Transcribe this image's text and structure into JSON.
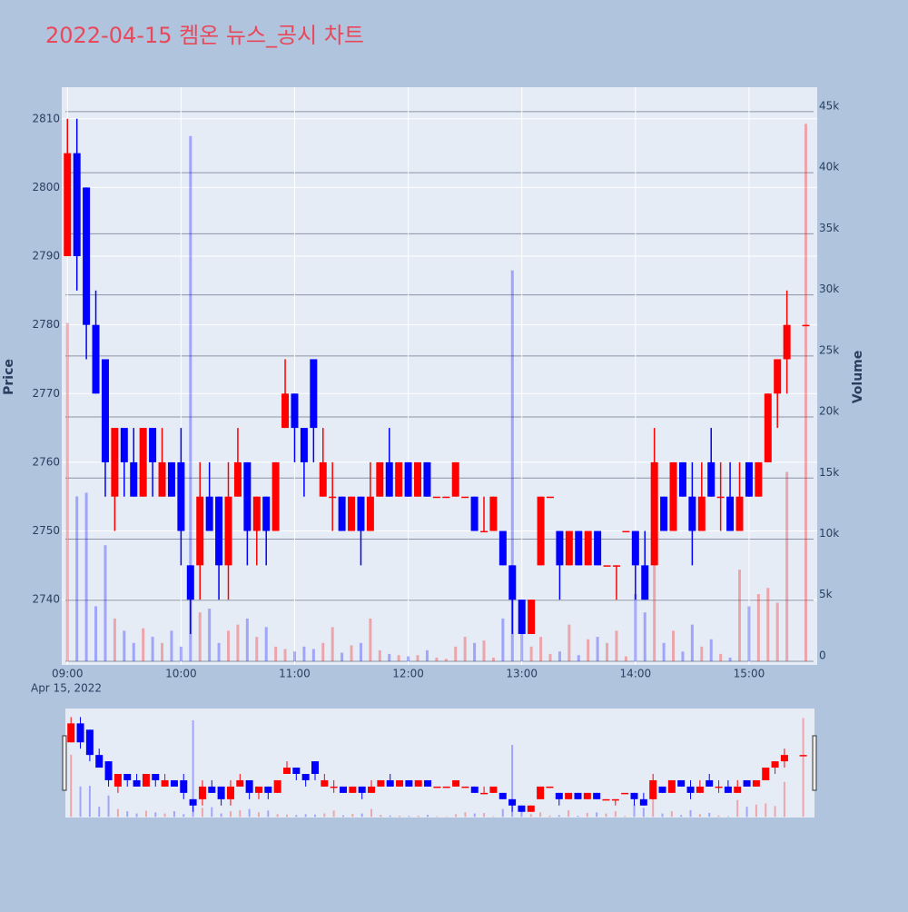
{
  "chart_data": {
    "type": "candlestick",
    "title": "2022-04-15 켐온 뉴스_공시 차트",
    "y_label": "Price",
    "y2_label": "Volume",
    "x_date_label": "Apr 15, 2022",
    "increasing_color": "#ff0000",
    "decreasing_color": "#0000ff",
    "x": [
      "2022-04-15 09:00",
      "2022-04-15 09:05",
      "2022-04-15 09:10",
      "2022-04-15 09:15",
      "2022-04-15 09:20",
      "2022-04-15 09:25",
      "2022-04-15 09:30",
      "2022-04-15 09:35",
      "2022-04-15 09:40",
      "2022-04-15 09:45",
      "2022-04-15 09:50",
      "2022-04-15 09:55",
      "2022-04-15 10:00",
      "2022-04-15 10:05",
      "2022-04-15 10:10",
      "2022-04-15 10:15",
      "2022-04-15 10:20",
      "2022-04-15 10:25",
      "2022-04-15 10:30",
      "2022-04-15 10:35",
      "2022-04-15 10:40",
      "2022-04-15 10:45",
      "2022-04-15 10:50",
      "2022-04-15 10:55",
      "2022-04-15 11:00",
      "2022-04-15 11:05",
      "2022-04-15 11:10",
      "2022-04-15 11:15",
      "2022-04-15 11:20",
      "2022-04-15 11:25",
      "2022-04-15 11:30",
      "2022-04-15 11:35",
      "2022-04-15 11:40",
      "2022-04-15 11:45",
      "2022-04-15 11:50",
      "2022-04-15 11:55",
      "2022-04-15 12:00",
      "2022-04-15 12:05",
      "2022-04-15 12:10",
      "2022-04-15 12:15",
      "2022-04-15 12:20",
      "2022-04-15 12:25",
      "2022-04-15 12:30",
      "2022-04-15 12:35",
      "2022-04-15 12:40",
      "2022-04-15 12:45",
      "2022-04-15 12:50",
      "2022-04-15 12:55",
      "2022-04-15 13:00",
      "2022-04-15 13:05",
      "2022-04-15 13:10",
      "2022-04-15 13:15",
      "2022-04-15 13:20",
      "2022-04-15 13:25",
      "2022-04-15 13:30",
      "2022-04-15 13:35",
      "2022-04-15 13:40",
      "2022-04-15 13:45",
      "2022-04-15 13:50",
      "2022-04-15 13:55",
      "2022-04-15 14:00",
      "2022-04-15 14:05",
      "2022-04-15 14:10",
      "2022-04-15 14:15",
      "2022-04-15 14:20",
      "2022-04-15 14:25",
      "2022-04-15 14:30",
      "2022-04-15 14:35",
      "2022-04-15 14:40",
      "2022-04-15 14:45",
      "2022-04-15 14:50",
      "2022-04-15 14:55",
      "2022-04-15 15:00",
      "2022-04-15 15:05",
      "2022-04-15 15:10",
      "2022-04-15 15:15",
      "2022-04-15 15:20",
      "2022-04-15 15:30"
    ],
    "open": [
      2790,
      2805,
      2800,
      2780,
      2775,
      2755,
      2765,
      2760,
      2755,
      2765,
      2755,
      2760,
      2760,
      2745,
      2745,
      2755,
      2755,
      2745,
      2755,
      2760,
      2750,
      2755,
      2750,
      2765,
      2770,
      2765,
      2775,
      2755,
      2755,
      2755,
      2750,
      2755,
      2750,
      2755,
      2760,
      2755,
      2760,
      2755,
      2760,
      2755,
      2755,
      2755,
      2755,
      2755,
      2750,
      2750,
      2750,
      2745,
      2740,
      2735,
      2745,
      2755,
      2750,
      2745,
      2750,
      2745,
      2750,
      2745,
      2745,
      2750,
      2750,
      2745,
      2745,
      2755,
      2750,
      2760,
      2755,
      2750,
      2760,
      2755,
      2755,
      2750,
      2760,
      2755,
      2760,
      2770,
      2775,
      2780
    ],
    "high": [
      2810,
      2810,
      2800,
      2785,
      2775,
      2765,
      2765,
      2765,
      2765,
      2765,
      2765,
      2760,
      2765,
      2745,
      2760,
      2760,
      2755,
      2760,
      2765,
      2760,
      2755,
      2755,
      2760,
      2775,
      2770,
      2765,
      2775,
      2765,
      2760,
      2755,
      2755,
      2755,
      2760,
      2760,
      2765,
      2760,
      2760,
      2760,
      2760,
      2755,
      2755,
      2760,
      2755,
      2755,
      2755,
      2755,
      2750,
      2745,
      2740,
      2740,
      2755,
      2755,
      2750,
      2750,
      2750,
      2750,
      2750,
      2745,
      2745,
      2750,
      2750,
      2750,
      2765,
      2755,
      2760,
      2760,
      2760,
      2760,
      2765,
      2760,
      2760,
      2760,
      2760,
      2760,
      2770,
      2775,
      2785,
      2780
    ],
    "low": [
      2790,
      2785,
      2775,
      2770,
      2755,
      2750,
      2755,
      2755,
      2755,
      2755,
      2755,
      2755,
      2745,
      2735,
      2740,
      2750,
      2740,
      2740,
      2755,
      2745,
      2745,
      2745,
      2750,
      2765,
      2760,
      2755,
      2760,
      2755,
      2750,
      2750,
      2750,
      2745,
      2750,
      2755,
      2755,
      2755,
      2755,
      2755,
      2755,
      2755,
      2755,
      2755,
      2755,
      2750,
      2750,
      2750,
      2745,
      2735,
      2735,
      2735,
      2745,
      2755,
      2740,
      2745,
      2745,
      2745,
      2745,
      2745,
      2740,
      2750,
      2740,
      2740,
      2745,
      2750,
      2750,
      2755,
      2745,
      2750,
      2755,
      2750,
      2750,
      2750,
      2755,
      2755,
      2760,
      2765,
      2770,
      2780
    ],
    "close": [
      2805,
      2790,
      2780,
      2770,
      2760,
      2765,
      2760,
      2755,
      2765,
      2760,
      2760,
      2755,
      2750,
      2740,
      2755,
      2750,
      2745,
      2755,
      2760,
      2750,
      2755,
      2750,
      2760,
      2770,
      2765,
      2760,
      2765,
      2760,
      2755,
      2750,
      2755,
      2750,
      2755,
      2760,
      2755,
      2760,
      2755,
      2760,
      2755,
      2755,
      2755,
      2760,
      2755,
      2750,
      2750,
      2755,
      2745,
      2740,
      2735,
      2740,
      2755,
      2755,
      2745,
      2750,
      2745,
      2750,
      2745,
      2745,
      2745,
      2750,
      2745,
      2740,
      2760,
      2750,
      2760,
      2755,
      2750,
      2755,
      2755,
      2755,
      2750,
      2755,
      2755,
      2760,
      2770,
      2775,
      2780,
      2780
    ],
    "volume": [
      27700,
      13500,
      13800,
      4500,
      9500,
      3500,
      2500,
      1500,
      2700,
      2000,
      1500,
      2500,
      1200,
      43000,
      4000,
      4300,
      1500,
      2500,
      3000,
      3500,
      2000,
      2800,
      1200,
      1000,
      800,
      1200,
      1000,
      1500,
      2800,
      700,
      1300,
      1500,
      3500,
      900,
      600,
      500,
      400,
      500,
      900,
      300,
      200,
      1200,
      2000,
      1500,
      1700,
      300,
      3500,
      32000,
      3000,
      1200,
      2000,
      600,
      800,
      3000,
      500,
      1800,
      2000,
      1500,
      2500,
      400,
      5500,
      4000,
      13000,
      1500,
      2500,
      800,
      3000,
      1200,
      1800,
      600,
      300,
      7500,
      4500,
      5500,
      6000,
      4800,
      15500,
      44000
    ],
    "xlim": [
      "2022-04-15 08:57",
      "2022-04-15 15:36"
    ],
    "xticks": [
      {
        "value": "2022-04-15 09:00",
        "label": "09:00"
      },
      {
        "value": "2022-04-15 10:00",
        "label": "10:00"
      },
      {
        "value": "2022-04-15 11:00",
        "label": "11:00"
      },
      {
        "value": "2022-04-15 12:00",
        "label": "12:00"
      },
      {
        "value": "2022-04-15 13:00",
        "label": "13:00"
      },
      {
        "value": "2022-04-15 14:00",
        "label": "14:00"
      },
      {
        "value": "2022-04-15 15:00",
        "label": "15:00"
      }
    ],
    "ylim": [
      2730.5,
      2814.6
    ],
    "yticks": [
      2740,
      2750,
      2760,
      2770,
      2780,
      2790,
      2800,
      2810
    ],
    "y2lim": [
      -300,
      47000
    ],
    "y2ticks": [
      0,
      {
        "value": 5000,
        "label": "5k"
      },
      {
        "value": 10000,
        "label": "10k"
      },
      {
        "value": 15000,
        "label": "15k"
      },
      {
        "value": 20000,
        "label": "20k"
      },
      {
        "value": 25000,
        "label": "25k"
      },
      {
        "value": 30000,
        "label": "30k"
      },
      {
        "value": 35000,
        "label": "35k"
      },
      {
        "value": 40000,
        "label": "40k"
      },
      {
        "value": 45000,
        "label": "45k"
      }
    ],
    "grid": true,
    "rangeslider": true
  }
}
